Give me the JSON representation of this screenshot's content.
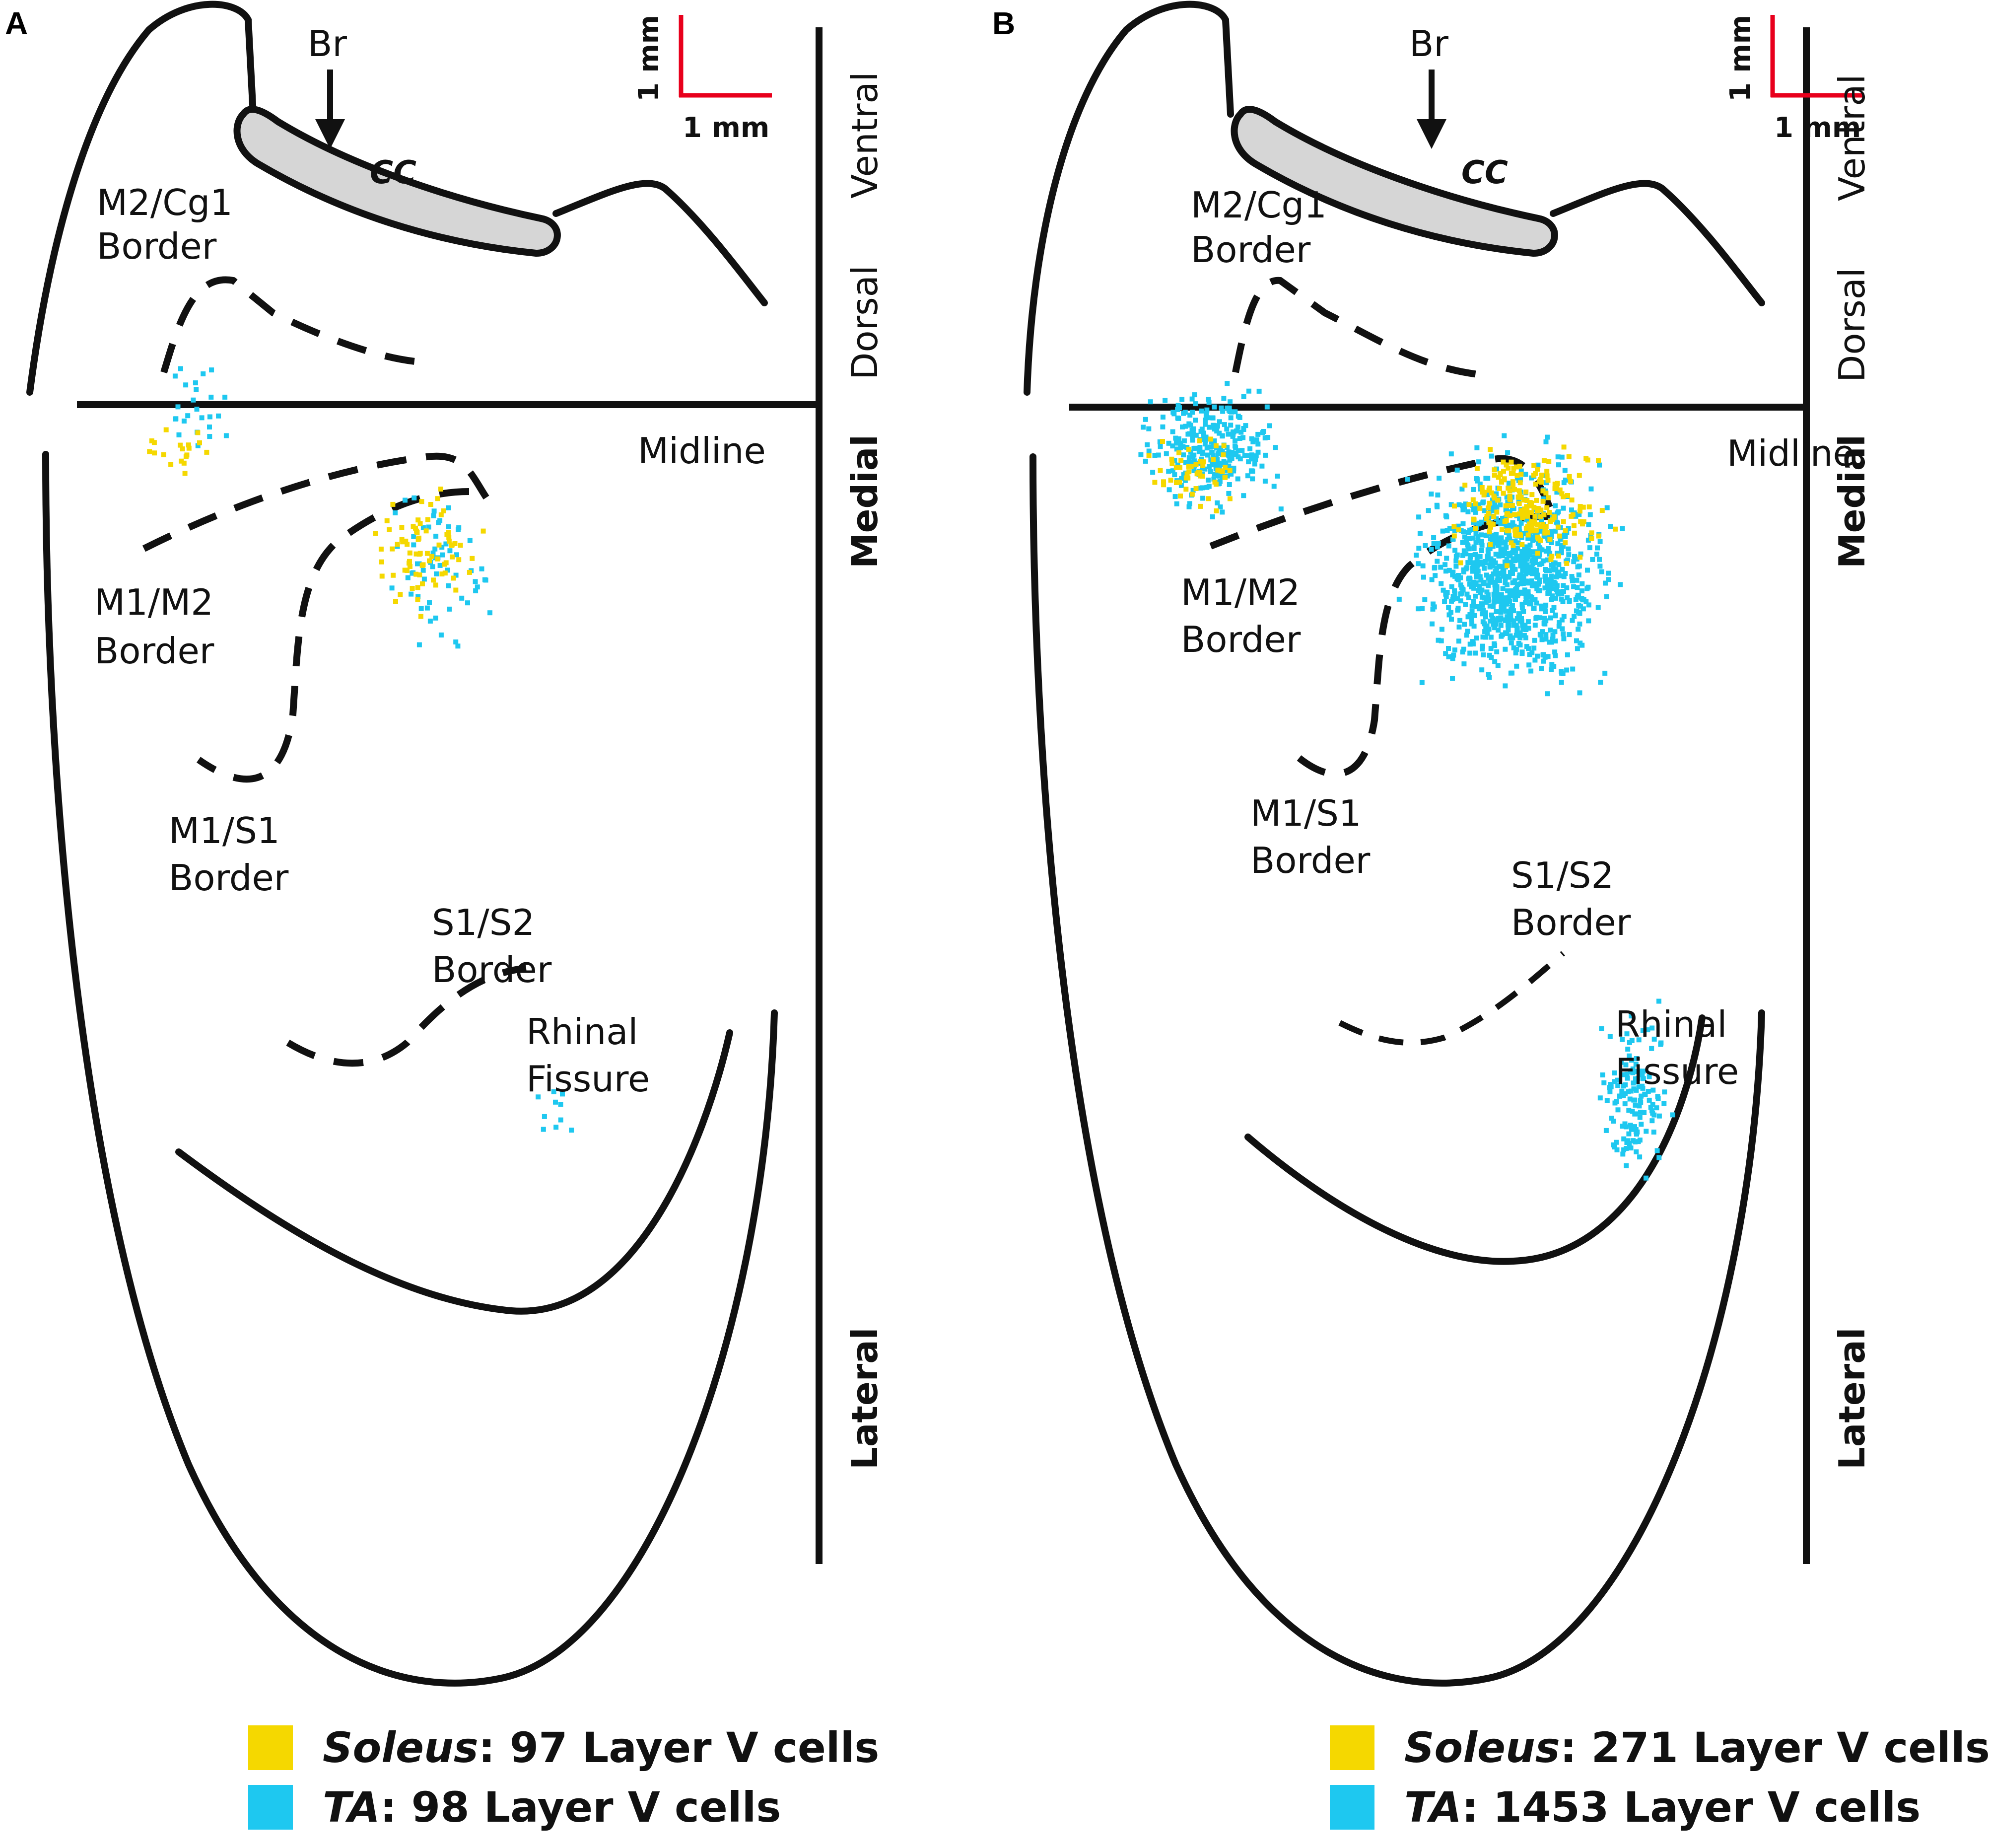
{
  "panels": [
    {
      "letter": "A",
      "labels": {
        "br": "Br",
        "cc": "CC",
        "m2cg1_a": "M2/Cg1",
        "m2cg1_b": "Border",
        "m1m2_a": "M1/M2",
        "m1m2_b": "Border",
        "m1s1_a": "M1/S1",
        "m1s1_b": "Border",
        "s1s2_a": "S1/S2",
        "s1s2_b": "Border",
        "rhinal_a": "Rhinal",
        "rhinal_b": "Fissure",
        "midline": "Midline"
      },
      "scale": {
        "vertical": "1 mm",
        "horizontal": "1 mm"
      },
      "axis": {
        "ventral": "Ventral",
        "dorsal": "Dorsal",
        "medial": "Medial",
        "lateral": "Lateral"
      },
      "legend": [
        {
          "name": "Soleus",
          "text": ": 97 Layer V cells",
          "color": "#f5d800"
        },
        {
          "name": "TA",
          "text": ": 98 Layer V cells",
          "color": "#1ec8f0"
        }
      ],
      "cells": {
        "soleus_count": 97,
        "ta_count": 98
      }
    },
    {
      "letter": "B",
      "labels": {
        "br": "Br",
        "cc": "CC",
        "m2cg1_a": "M2/Cg1",
        "m2cg1_b": "Border",
        "m1m2_a": "M1/M2",
        "m1m2_b": "Border",
        "m1s1_a": "M1/S1",
        "m1s1_b": "Border",
        "s1s2_a": "S1/S2",
        "s1s2_b": "Border",
        "rhinal_a": "Rhinal",
        "rhinal_b": "Fissure",
        "midline": "Midline"
      },
      "scale": {
        "vertical": "1 mm",
        "horizontal": "1 mm"
      },
      "axis": {
        "ventral": "Ventral",
        "dorsal": "Dorsal",
        "medial": "Medial",
        "lateral": "Lateral"
      },
      "legend": [
        {
          "name": "Soleus",
          "text": ": 271 Layer V cells",
          "color": "#f5d800"
        },
        {
          "name": "TA",
          "text": ": 1453 Layer V cells",
          "color": "#1ec8f0"
        }
      ],
      "cells": {
        "soleus_count": 271,
        "ta_count": 1453
      }
    }
  ],
  "colors": {
    "soleus": "#f5d800",
    "ta": "#1ec8f0",
    "scale_bar": "#e8001c",
    "outline": "#111111",
    "corpus_callosum": "#d6d6d6"
  }
}
